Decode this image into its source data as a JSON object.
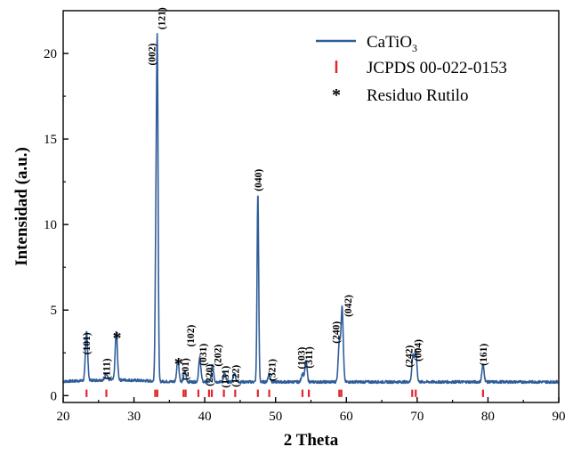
{
  "chart_data": {
    "type": "line",
    "title": "",
    "xlabel": "2 Theta",
    "ylabel": "Intensidad (a.u.)",
    "xlim": [
      20,
      90
    ],
    "ylim": [
      -0.4,
      22.5
    ],
    "xticks": [
      "20",
      "30",
      "40",
      "50",
      "60",
      "70",
      "80",
      "90"
    ],
    "yticks": [
      "0",
      "5",
      "10",
      "15",
      "20"
    ],
    "series": [
      {
        "name": "CaTiO3",
        "color": "#2f5d99",
        "baseline": 0.8,
        "peaks": [
          {
            "x": 23.3,
            "height": 2.9
          },
          {
            "x": 26.1,
            "height": 0.4
          },
          {
            "x": 27.5,
            "height": 2.8
          },
          {
            "x": 33.1,
            "height": 7.5
          },
          {
            "x": 33.3,
            "height": 18.5
          },
          {
            "x": 36.2,
            "height": 1.3
          },
          {
            "x": 37.2,
            "height": 0.6
          },
          {
            "x": 39.3,
            "height": 1.4
          },
          {
            "x": 41.1,
            "height": 1.0
          },
          {
            "x": 42.8,
            "height": 0.5
          },
          {
            "x": 44.2,
            "height": 0.5
          },
          {
            "x": 47.5,
            "height": 11.0
          },
          {
            "x": 49.1,
            "height": 0.5
          },
          {
            "x": 53.8,
            "height": 0.5
          },
          {
            "x": 54.3,
            "height": 1.2
          },
          {
            "x": 59.0,
            "height": 2.3
          },
          {
            "x": 59.4,
            "height": 4.3
          },
          {
            "x": 69.4,
            "height": 1.5
          },
          {
            "x": 69.8,
            "height": 1.8
          },
          {
            "x": 79.3,
            "height": 1.0
          }
        ]
      },
      {
        "name": "JCPDS 00-022-0153",
        "color": "#e0262d",
        "type": "reference_sticks",
        "positions": [
          23.3,
          26.1,
          33.0,
          33.3,
          37.0,
          37.3,
          39.1,
          40.6,
          41.0,
          42.7,
          44.3,
          47.5,
          49.1,
          53.8,
          54.7,
          59.0,
          59.3,
          69.3,
          69.8,
          79.3
        ]
      }
    ],
    "peak_labels": [
      {
        "text": "(101)",
        "x": 23.3,
        "y": 2.4
      },
      {
        "text": "(111)",
        "x": 26.1,
        "y": 0.95
      },
      {
        "text": "(002)",
        "x": 32.5,
        "y": 19.3
      },
      {
        "text": "(121)",
        "x": 33.9,
        "y": 21.4
      },
      {
        "text": "(201)",
        "x": 37.2,
        "y": 0.9
      },
      {
        "text": "(102)",
        "x": 38.0,
        "y": 2.85
      },
      {
        "text": "(031)",
        "x": 39.7,
        "y": 1.75
      },
      {
        "text": "(220)",
        "x": 40.6,
        "y": 0.55
      },
      {
        "text": "(202)",
        "x": 41.8,
        "y": 1.7
      },
      {
        "text": "(131)",
        "x": 42.9,
        "y": 0.45
      },
      {
        "text": "(122)",
        "x": 44.3,
        "y": 0.5
      },
      {
        "text": "(040)",
        "x": 47.5,
        "y": 11.95
      },
      {
        "text": "(321)",
        "x": 49.5,
        "y": 0.85
      },
      {
        "text": "(103)",
        "x": 53.6,
        "y": 1.55
      },
      {
        "text": "(311)",
        "x": 54.7,
        "y": 1.6
      },
      {
        "text": "(240)",
        "x": 58.5,
        "y": 3.05
      },
      {
        "text": "(042)",
        "x": 60.2,
        "y": 4.6
      },
      {
        "text": "(242)",
        "x": 68.8,
        "y": 1.65
      },
      {
        "text": "(004)",
        "x": 70.1,
        "y": 2.0
      },
      {
        "text": "(161)",
        "x": 79.3,
        "y": 1.75
      }
    ],
    "markers": [
      {
        "text": "*",
        "x": 27.6,
        "y": 3.65
      },
      {
        "text": "*",
        "x": 36.3,
        "y": 2.15
      }
    ],
    "legend": {
      "position": "top-right",
      "entries": [
        {
          "label": "CaTiO",
          "subscript": "3",
          "type": "line",
          "color": "#2f5d99"
        },
        {
          "label": "JCPDS 00-022-0153",
          "type": "stick",
          "color": "#e0262d"
        },
        {
          "label": "Residuo Rutilo",
          "type": "star",
          "color": "#000000",
          "symbol": "*"
        }
      ]
    }
  }
}
